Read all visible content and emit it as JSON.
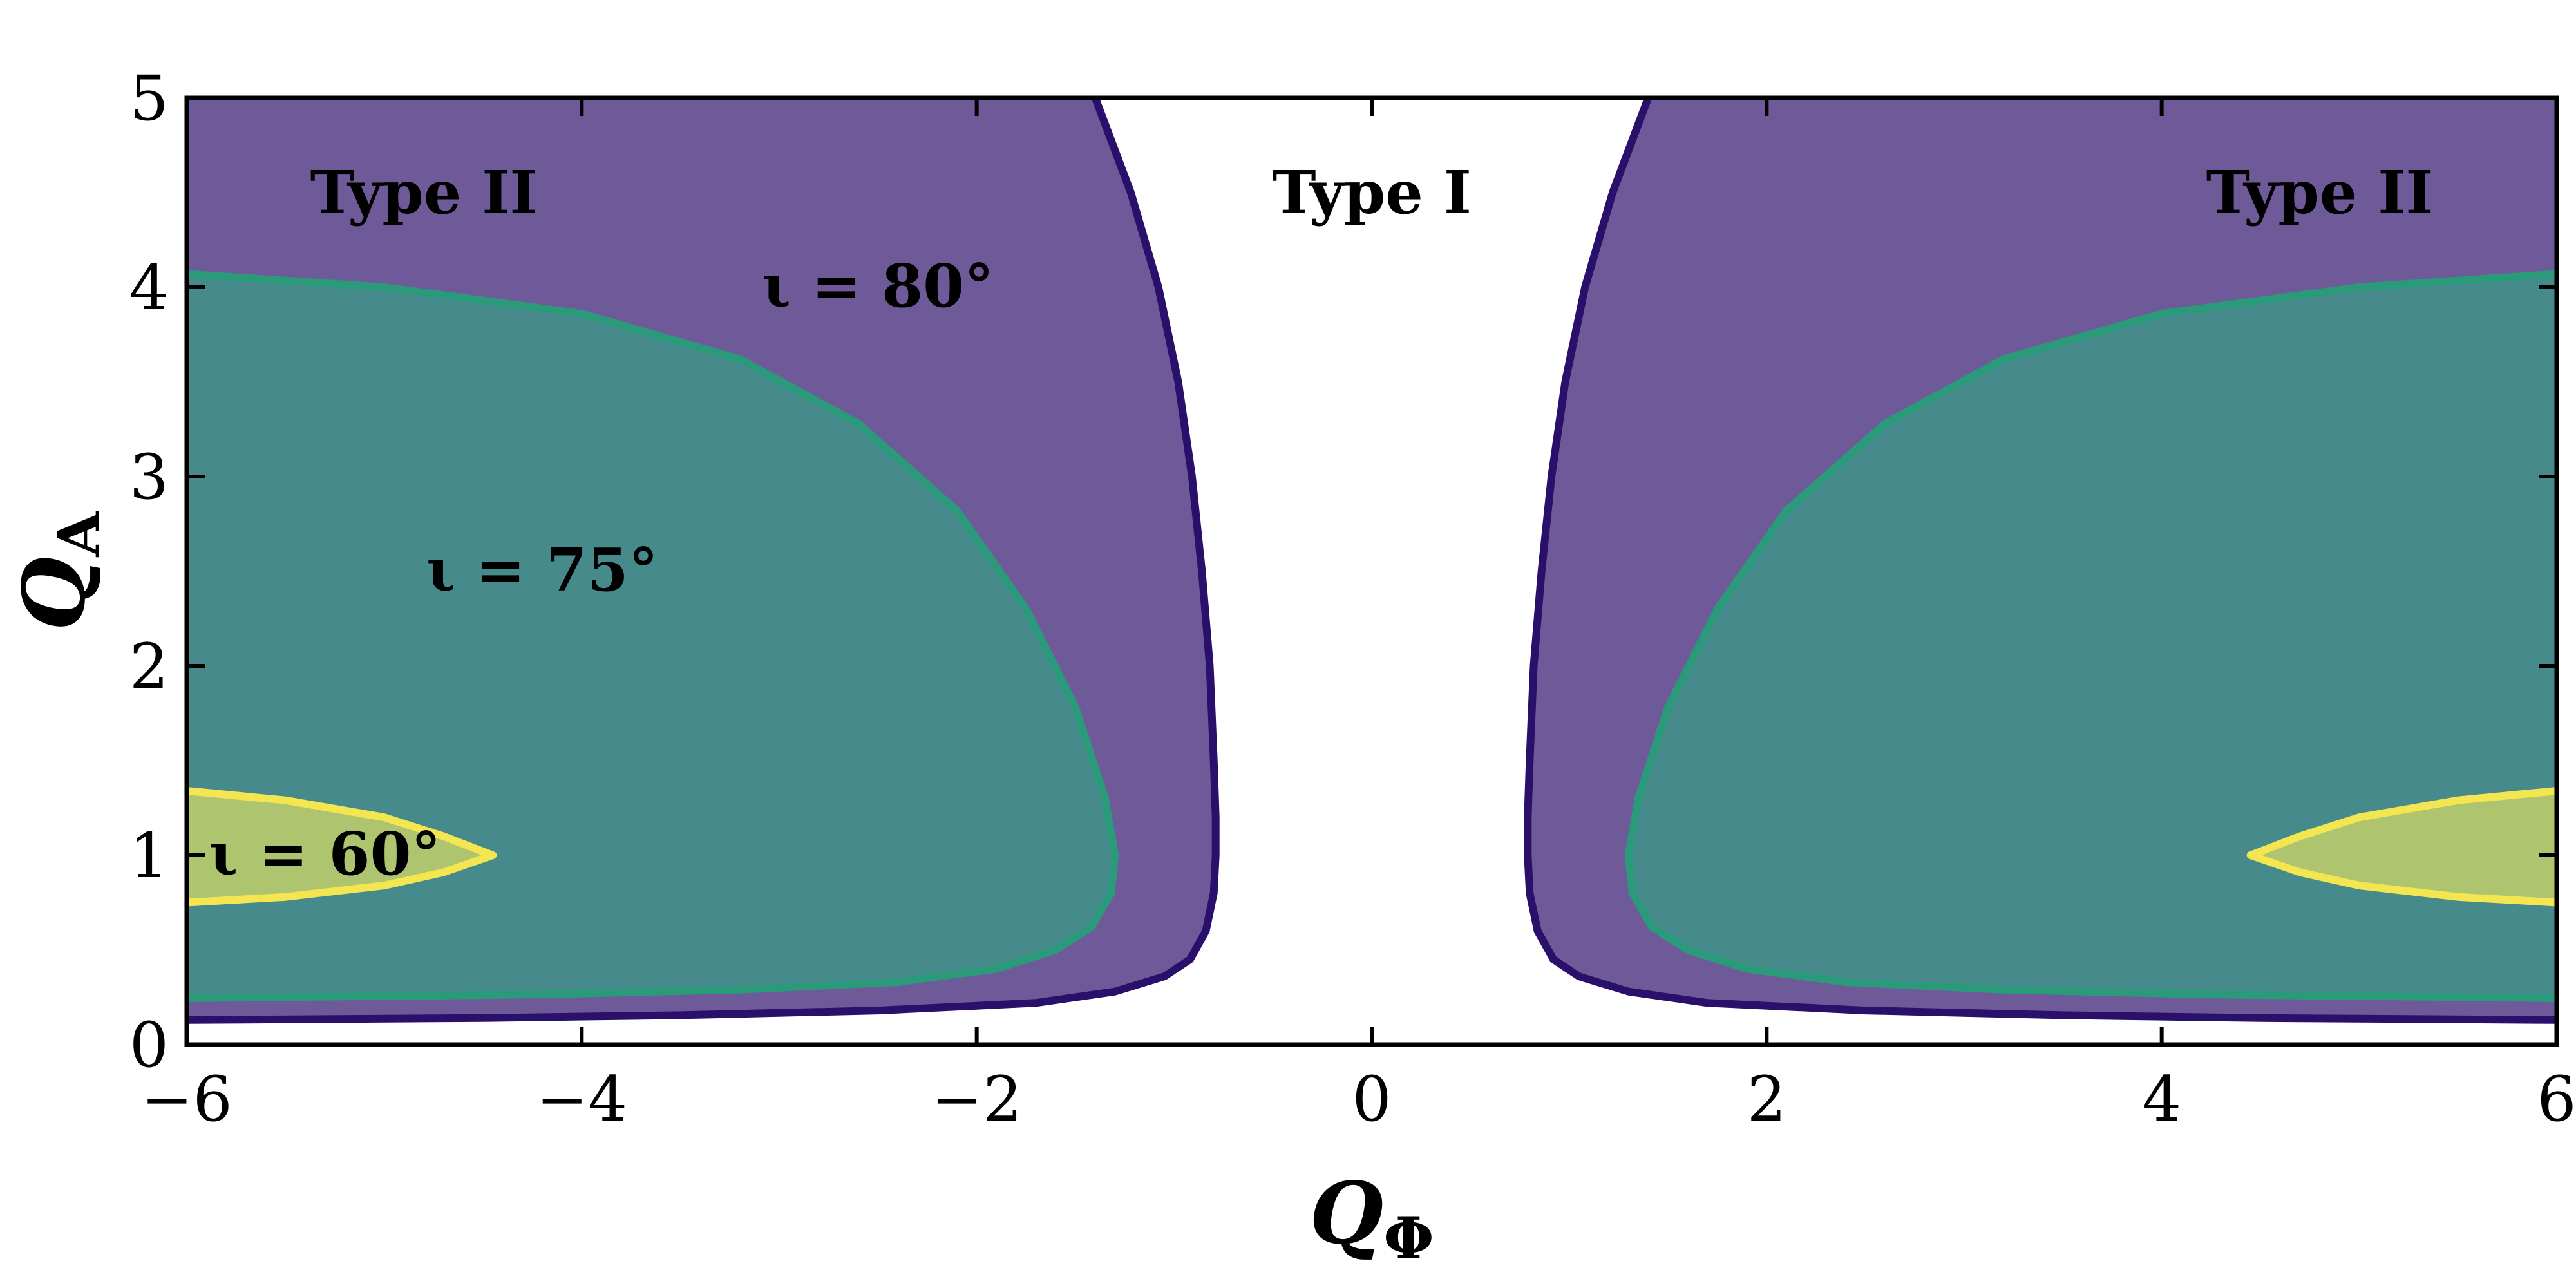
{
  "chart_data": {
    "type": "area",
    "xlabel": "Q",
    "xlabel_sub": "Φ",
    "ylabel": "Q",
    "ylabel_sub": "A",
    "xlim": [
      -6,
      6
    ],
    "ylim": [
      0,
      5
    ],
    "x_ticks": [
      -6,
      -4,
      -2,
      0,
      2,
      4,
      6
    ],
    "x_tick_labels": [
      "−6",
      "−4",
      "−2",
      "0",
      "2",
      "4",
      "6"
    ],
    "y_ticks": [
      0,
      1,
      2,
      3,
      4,
      5
    ],
    "y_tick_labels": [
      "0",
      "1",
      "2",
      "3",
      "4",
      "5"
    ],
    "grid": false,
    "legend": "none",
    "region_labels": [
      {
        "text": "Type II",
        "x": -4.8,
        "y": 4.5
      },
      {
        "text": "Type I",
        "x": 0.0,
        "y": 4.5
      },
      {
        "text": "Type II",
        "x": 4.8,
        "y": 4.5
      }
    ],
    "contour_labels": [
      {
        "text": "ι = 80°",
        "x": -2.5,
        "y": 4.0
      },
      {
        "text": "ι = 75°",
        "x": -4.2,
        "y": 2.5
      },
      {
        "text": "ι = 60°",
        "x": -5.3,
        "y": 1.0
      }
    ],
    "series": [
      {
        "name": "ι = 80°",
        "fill": "#6e5a98",
        "stroke": "#2a0f6b",
        "boundary_left": [
          [
            -1.4,
            5.0
          ],
          [
            -1.22,
            4.5
          ],
          [
            -1.08,
            4.0
          ],
          [
            -0.98,
            3.5
          ],
          [
            -0.91,
            3.0
          ],
          [
            -0.86,
            2.5
          ],
          [
            -0.82,
            2.0
          ],
          [
            -0.8,
            1.5
          ],
          [
            -0.79,
            1.2
          ],
          [
            -0.79,
            1.0
          ],
          [
            -0.8,
            0.8
          ],
          [
            -0.84,
            0.6
          ],
          [
            -0.92,
            0.45
          ],
          [
            -1.05,
            0.36
          ],
          [
            -1.3,
            0.28
          ],
          [
            -1.7,
            0.22
          ],
          [
            -2.5,
            0.18
          ],
          [
            -3.5,
            0.155
          ],
          [
            -4.5,
            0.14
          ],
          [
            -6.0,
            0.13
          ]
        ]
      },
      {
        "name": "ι = 75°",
        "fill": "#468a8c",
        "stroke": "#2a9a7a",
        "boundary_left": [
          [
            -6.0,
            4.07
          ],
          [
            -5.0,
            4.0
          ],
          [
            -4.0,
            3.86
          ],
          [
            -3.2,
            3.62
          ],
          [
            -2.6,
            3.28
          ],
          [
            -2.1,
            2.82
          ],
          [
            -1.75,
            2.3
          ],
          [
            -1.5,
            1.78
          ],
          [
            -1.35,
            1.3
          ],
          [
            -1.3,
            1.0
          ],
          [
            -1.32,
            0.8
          ],
          [
            -1.42,
            0.62
          ],
          [
            -1.6,
            0.5
          ],
          [
            -1.9,
            0.4
          ],
          [
            -2.4,
            0.33
          ],
          [
            -3.2,
            0.29
          ],
          [
            -4.2,
            0.265
          ],
          [
            -6.0,
            0.245
          ]
        ]
      },
      {
        "name": "ι = 60°",
        "fill": "#afc46f",
        "stroke": "#f3e651",
        "boundary_left": [
          [
            -6.0,
            1.34
          ],
          [
            -5.5,
            1.29
          ],
          [
            -5.0,
            1.2
          ],
          [
            -4.7,
            1.1
          ],
          [
            -4.45,
            1.0
          ],
          [
            -4.7,
            0.91
          ],
          [
            -5.0,
            0.84
          ],
          [
            -5.5,
            0.78
          ],
          [
            -6.0,
            0.75
          ]
        ]
      }
    ],
    "symmetry": "mirror about QΦ = 0"
  }
}
